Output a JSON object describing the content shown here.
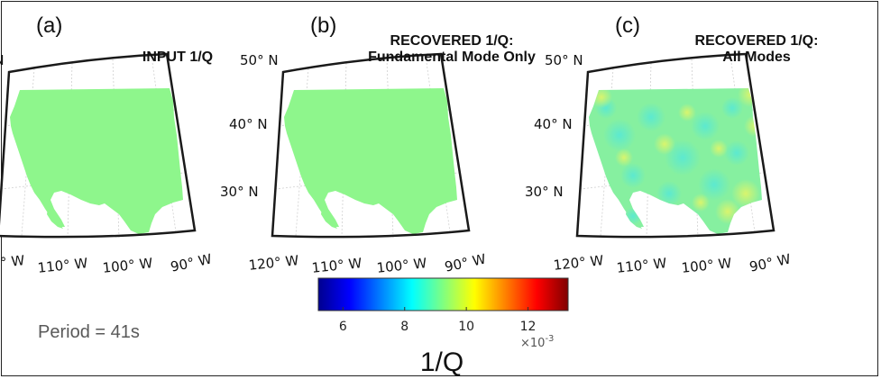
{
  "panels": [
    {
      "label": "(a)",
      "title_lines": [
        "INPUT 1/Q"
      ],
      "field": "uniform"
    },
    {
      "label": "(b)",
      "title_lines": [
        "RECOVERED 1/Q:",
        "Fundamental Mode Only"
      ],
      "field": "uniform"
    },
    {
      "label": "(c)",
      "title_lines": [
        "RECOVERED 1/Q:",
        "All Modes"
      ],
      "field": "variable"
    }
  ],
  "lat_labels": [
    "50° N",
    "40° N",
    "30° N"
  ],
  "lon_labels": [
    "120° W",
    "110° W",
    "100° W",
    "90° W"
  ],
  "period_text": "Period = 41s",
  "colorbar": {
    "ticks": [
      "6",
      "8",
      "10",
      "12"
    ],
    "tick_values": [
      6,
      8,
      10,
      12
    ],
    "range": [
      5.2,
      13.3
    ],
    "multiplier": "×10",
    "multiplier_exp": "-3",
    "label": "1/Q",
    "colors": [
      "#00008f",
      "#0000ff",
      "#0080ff",
      "#00ffff",
      "#80ff80",
      "#ffff00",
      "#ff8000",
      "#ff0000",
      "#800000"
    ]
  },
  "fill_colors": {
    "uniform": "#8ef68c",
    "variable_base": "#86f0a0",
    "variable_blue": "#55e8d8",
    "variable_yellow": "#e2f568"
  }
}
